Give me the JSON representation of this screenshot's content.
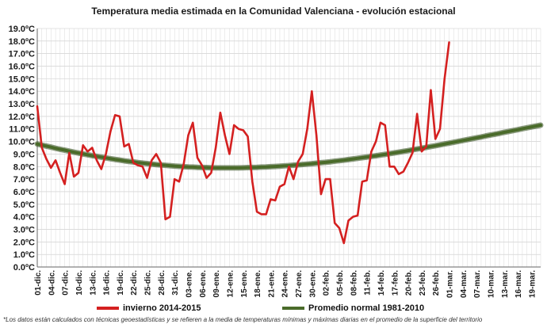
{
  "chart_data": {
    "type": "line",
    "title": "Temperatura media estimada en la Comunidad Valenciana - evolución estacional",
    "ylim": [
      0,
      19
    ],
    "y_ticks": [
      "0.0ºC",
      "1.0ºC",
      "2.0ºC",
      "3.0ºC",
      "4.0ºC",
      "5.0ºC",
      "6.0ºC",
      "7.0ºC",
      "8.0ºC",
      "9.0ºC",
      "10.0ºC",
      "11.0ºC",
      "12.0ºC",
      "13.0ºC",
      "14.0ºC",
      "15.0ºC",
      "16.0ºC",
      "17.0ºC",
      "18.0ºC",
      "19.0ºC"
    ],
    "x_tick_labels": [
      "01-dic.",
      "04-dic.",
      "07-dic.",
      "10-dic.",
      "13-dic.",
      "16-dic.",
      "19-dic.",
      "22-dic.",
      "25-dic.",
      "28-dic.",
      "31-dic.",
      "03-ene.",
      "06-ene.",
      "09-ene.",
      "12-ene.",
      "15-ene.",
      "18-ene.",
      "21-ene.",
      "24-ene.",
      "27-ene.",
      "30-ene.",
      "02-feb.",
      "05-feb.",
      "08-feb.",
      "11-feb.",
      "14-feb.",
      "17-feb.",
      "20-feb.",
      "23-feb.",
      "26-feb.",
      "01-mar.",
      "04-mar.",
      "07-mar.",
      "10-mar.",
      "13-mar.",
      "16-mar.",
      "19-mar."
    ],
    "grid": true,
    "legend_position": "bottom",
    "series": [
      {
        "name": "invierno 2014-2015",
        "color": "#d42020",
        "values": [
          12.8,
          9.5,
          8.6,
          7.9,
          8.5,
          7.5,
          6.6,
          9.1,
          7.2,
          7.5,
          9.7,
          9.2,
          9.5,
          8.5,
          7.8,
          9.0,
          10.8,
          12.1,
          12.0,
          9.6,
          9.8,
          8.3,
          8.1,
          8.0,
          7.1,
          8.5,
          9.0,
          8.3,
          3.8,
          4.0,
          7.0,
          6.8,
          8.2,
          10.5,
          11.5,
          8.7,
          8.1,
          7.1,
          7.5,
          9.5,
          12.3,
          10.5,
          9.0,
          11.3,
          11.0,
          10.9,
          10.4,
          6.8,
          4.4,
          4.2,
          4.2,
          5.4,
          5.3,
          6.4,
          6.6,
          8.0,
          7.0,
          8.4,
          9.0,
          11.0,
          14.0,
          10.5,
          5.8,
          7.0,
          7.0,
          3.5,
          3.1,
          1.9,
          3.7,
          4.0,
          4.1,
          6.8,
          6.9,
          9.2,
          10.0,
          11.5,
          11.3,
          8.0,
          8.0,
          7.4,
          7.6,
          8.3,
          9.1,
          12.2,
          9.2,
          9.6,
          14.1,
          10.2,
          11.0,
          15.0,
          17.9
        ]
      },
      {
        "name": "Promedio normal 1981-2010",
        "color": "#4a6b2a",
        "values": [
          9.8,
          9.71,
          9.63,
          9.55,
          9.46,
          9.38,
          9.31,
          9.23,
          9.15,
          9.08,
          9.01,
          8.94,
          8.87,
          8.81,
          8.75,
          8.69,
          8.63,
          8.57,
          8.52,
          8.46,
          8.41,
          8.37,
          8.32,
          8.28,
          8.24,
          8.2,
          8.16,
          8.13,
          8.1,
          8.07,
          8.04,
          8.02,
          7.99,
          7.97,
          7.96,
          7.94,
          7.93,
          7.92,
          7.91,
          7.9,
          7.9,
          7.9,
          7.9,
          7.9,
          7.9,
          7.91,
          7.92,
          7.93,
          7.94,
          7.96,
          7.97,
          7.99,
          8.01,
          8.03,
          8.06,
          8.08,
          8.11,
          8.14,
          8.17,
          8.2,
          8.23,
          8.27,
          8.31,
          8.34,
          8.38,
          8.43,
          8.47,
          8.51,
          8.56,
          8.61,
          8.66,
          8.71,
          8.76,
          8.81,
          8.86,
          8.92,
          8.97,
          9.03,
          9.09,
          9.15,
          9.21,
          9.27,
          9.34,
          9.4,
          9.46,
          9.53,
          9.6,
          9.66,
          9.73,
          9.8,
          9.87,
          9.94,
          10.01,
          10.08,
          10.15,
          10.22,
          10.29,
          10.36,
          10.44,
          10.51,
          10.58,
          10.65,
          10.73,
          10.8,
          10.87,
          10.94,
          11.02,
          11.09,
          11.16,
          11.23,
          11.3
        ]
      }
    ],
    "annotation": "*Los datos están calculados con técnicas geoestadísticas y se refieren a la media de temperaturas mínimas y máximas diarias en el promedio de la superficie del territorio"
  }
}
